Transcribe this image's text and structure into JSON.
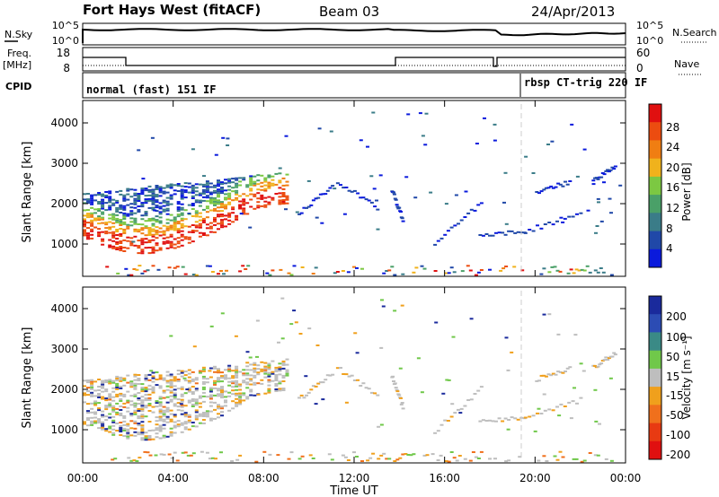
{
  "header": {
    "radar": "Fort Hays West (fitACF)",
    "beam": "Beam 03",
    "date": "24/Apr/2013"
  },
  "nsky_panel": {
    "left_label": "N.Sky",
    "right_label": "N.Search",
    "left_ticks": [
      "10^5",
      "10^0"
    ],
    "right_ticks": [
      "10^5",
      "10^0"
    ]
  },
  "freq_panel": {
    "left_label_1": "Freq.",
    "left_label_2": "[MHz]",
    "right_label": "Nave",
    "left_ticks": [
      "18",
      "8"
    ],
    "right_ticks": [
      "60",
      "0"
    ]
  },
  "cpid_panel": {
    "label": "CPID",
    "mode_1": "normal (fast) 151 IF",
    "mode_2": "rbsp CT-trig 220 IF"
  },
  "chart_data": [
    {
      "type": "heatmap",
      "name": "power",
      "ylabel": "Slant Range [km]",
      "y_ticks": [
        "1000",
        "2000",
        "3000",
        "4000"
      ],
      "ylim": [
        200,
        4600
      ],
      "xlim": [
        0,
        24
      ],
      "colorbar": {
        "title": "Power [dB]",
        "ticks": [
          "4",
          "8",
          "12",
          "16",
          "20",
          "24",
          "28"
        ],
        "range": [
          0,
          32
        ]
      },
      "vertical_marker_hours": 19.33
    },
    {
      "type": "heatmap",
      "name": "velocity",
      "ylabel": "Slant Range [km]",
      "y_ticks": [
        "1000",
        "2000",
        "3000",
        "4000"
      ],
      "ylim": [
        200,
        4600
      ],
      "xlim": [
        0,
        24
      ],
      "colorbar": {
        "title": "Velocity [m s⁻¹]",
        "ticks": [
          "200",
          "100",
          "50",
          "15",
          "-15",
          "-50",
          "-100",
          "-200"
        ]
      },
      "vertical_marker_hours": 19.33
    }
  ],
  "time_axis": {
    "label": "Time UT",
    "ticks": [
      "00:00",
      "04:00",
      "08:00",
      "12:00",
      "16:00",
      "20:00",
      "00:00"
    ]
  },
  "colors": {
    "power": [
      "#0a1adc",
      "#2048a8",
      "#3a7c88",
      "#4aa068",
      "#7cc842",
      "#f0b21c",
      "#f07e12",
      "#ec4c10",
      "#e01010"
    ],
    "velocity": [
      "#1a2a9c",
      "#2c4cb4",
      "#3a8a86",
      "#70c84a",
      "#bebebe",
      "#f0a01c",
      "#f0701c",
      "#e83a12",
      "#e01010"
    ]
  }
}
